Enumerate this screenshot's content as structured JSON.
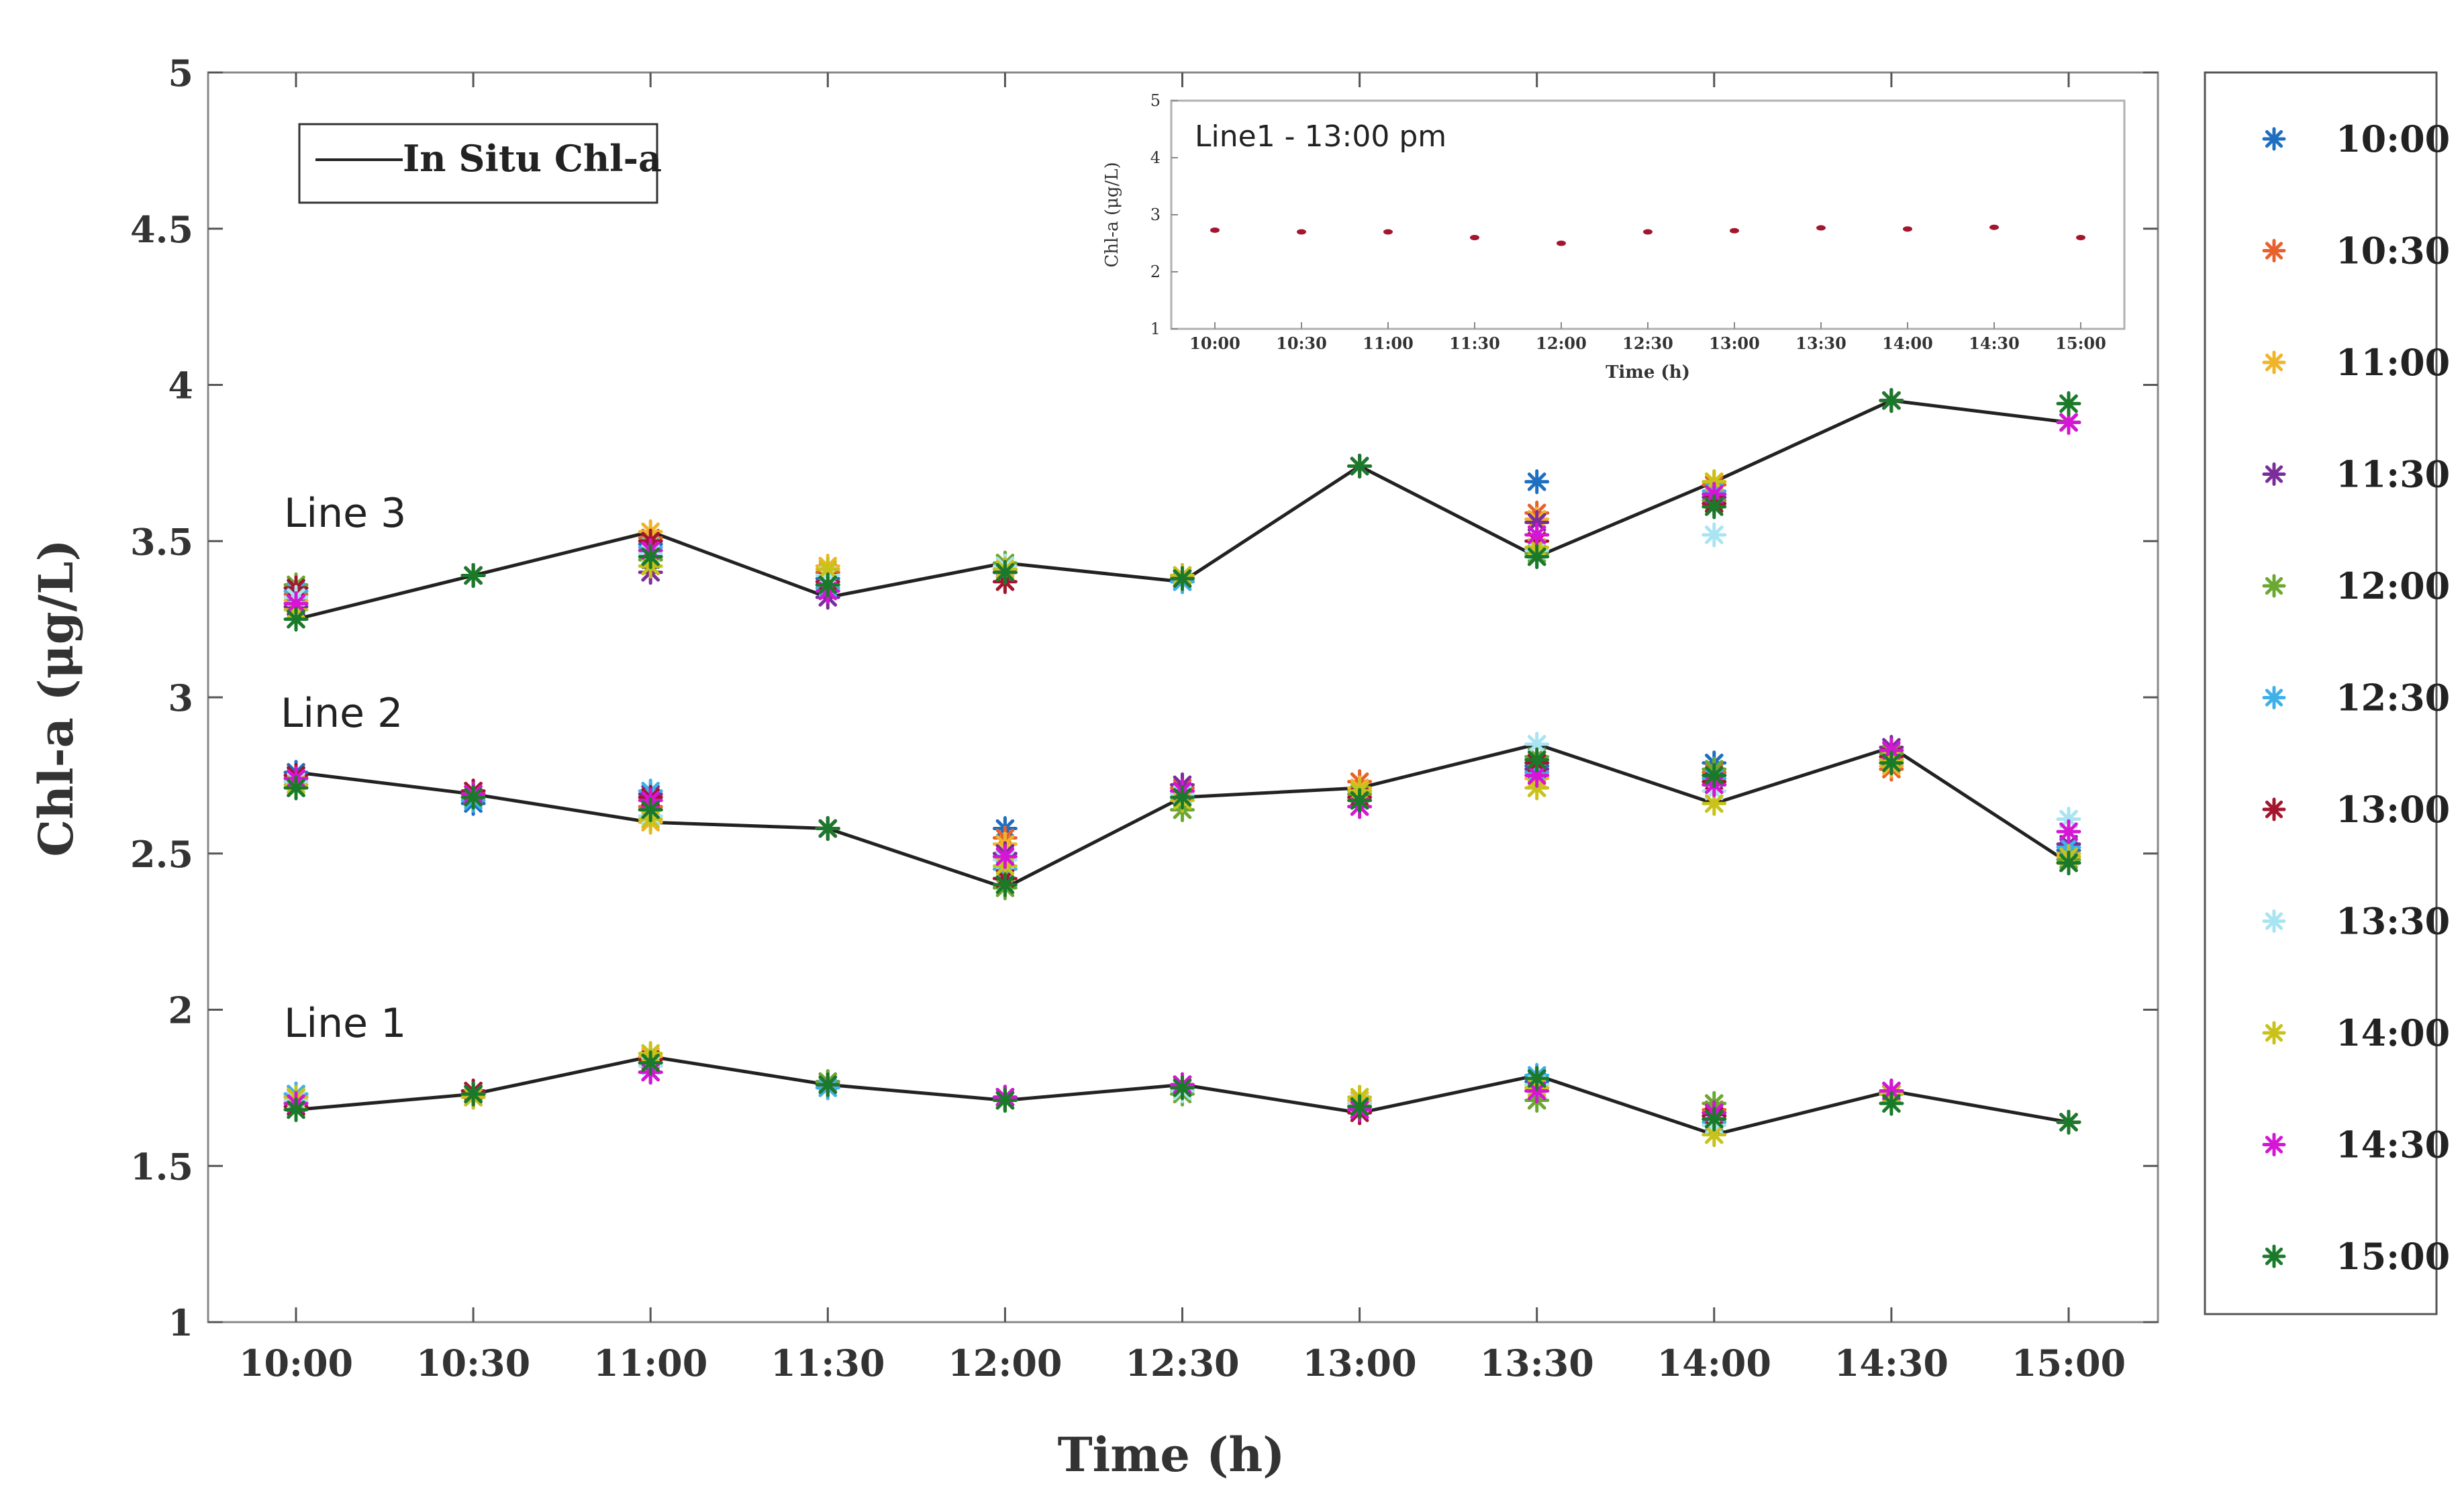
{
  "chart_data": {
    "type": "scatter",
    "ylabel": "Chl-a (μg/L)",
    "xlabel": "Time (h)",
    "x_categories": [
      "10:00",
      "10:30",
      "11:00",
      "11:30",
      "12:00",
      "12:30",
      "13:00",
      "13:30",
      "14:00",
      "14:30",
      "15:00"
    ],
    "ylim": [
      1,
      5
    ],
    "y_ticks": [
      1,
      1.5,
      2,
      2.5,
      3,
      3.5,
      4,
      4.5,
      5
    ],
    "y_tick_labels": [
      "1",
      "1.5",
      "2",
      "2.5",
      "3",
      "3.5",
      "4",
      "4.5",
      "5"
    ],
    "in_situ_legend_label": "In Situ Chl-a",
    "line_labels": [
      "Line 1",
      "Line 2",
      "Line 3"
    ],
    "in_situ": {
      "Line 1": [
        1.68,
        1.73,
        1.85,
        1.76,
        1.71,
        1.76,
        1.67,
        1.79,
        1.6,
        1.74,
        1.64
      ],
      "Line 2": [
        2.76,
        2.69,
        2.6,
        2.58,
        2.39,
        2.68,
        2.71,
        2.85,
        2.66,
        2.84,
        2.47
      ],
      "Line 3": [
        3.25,
        3.39,
        3.53,
        3.32,
        3.43,
        3.37,
        3.74,
        3.45,
        3.69,
        3.95,
        3.88
      ]
    },
    "series_names": [
      "10:00",
      "10:30",
      "11:00",
      "11:30",
      "12:00",
      "12:30",
      "13:00",
      "13:30",
      "14:00",
      "14:30",
      "15:00"
    ],
    "series_colors": [
      "#1f6fc0",
      "#e8612c",
      "#f0b429",
      "#7b2d9a",
      "#6aa832",
      "#3fb1e8",
      "#a3162e",
      "#a8e4f2",
      "#c9c21a",
      "#d516d5",
      "#1a7a2a"
    ],
    "legend_position": "right",
    "predicted": {
      "Line 1": [
        [
          1.7,
          1.72,
          1.71,
          1.73,
          1.72,
          1.73,
          1.69,
          1.71,
          1.72,
          1.7,
          1.68
        ],
        [
          1.73,
          1.73,
          1.72,
          1.73,
          1.73,
          1.72,
          1.74,
          1.73,
          1.72,
          1.73,
          1.73
        ],
        [
          1.84,
          1.83,
          1.85,
          1.8,
          1.82,
          1.83,
          1.84,
          1.82,
          1.86,
          1.8,
          1.83
        ],
        [
          1.76,
          1.77,
          1.76,
          1.76,
          1.77,
          1.75,
          1.76,
          1.76,
          1.76,
          1.76,
          1.76
        ],
        [
          1.71,
          1.72,
          1.71,
          1.72,
          1.71,
          1.72,
          1.72,
          1.71,
          1.71,
          1.72,
          1.71
        ],
        [
          1.75,
          1.76,
          1.74,
          1.76,
          1.73,
          1.75,
          1.76,
          1.74,
          1.75,
          1.76,
          1.75
        ],
        [
          1.69,
          1.68,
          1.71,
          1.7,
          1.69,
          1.68,
          1.67,
          1.7,
          1.72,
          1.68,
          1.69
        ],
        [
          1.77,
          1.76,
          1.75,
          1.74,
          1.71,
          1.79,
          1.78,
          1.76,
          1.75,
          1.74,
          1.78
        ],
        [
          1.66,
          1.68,
          1.65,
          1.67,
          1.7,
          1.64,
          1.66,
          1.63,
          1.6,
          1.67,
          1.65
        ],
        [
          1.73,
          1.74,
          1.73,
          1.74,
          1.73,
          1.74,
          1.73,
          1.74,
          1.73,
          1.74,
          1.7
        ],
        [
          1.64,
          1.64,
          1.64,
          1.64,
          1.64,
          1.64,
          1.64,
          1.64,
          1.64,
          1.64,
          1.64
        ]
      ],
      "Line 2": [
        [
          2.76,
          2.74,
          2.73,
          2.75,
          2.71,
          2.74,
          2.75,
          2.73,
          2.72,
          2.74,
          2.71
        ],
        [
          2.66,
          2.7,
          2.69,
          2.68,
          2.69,
          2.67,
          2.7,
          2.69,
          2.68,
          2.69,
          2.68
        ],
        [
          2.68,
          2.65,
          2.6,
          2.69,
          2.64,
          2.7,
          2.68,
          2.62,
          2.61,
          2.67,
          2.64
        ],
        [
          2.58,
          2.58,
          2.58,
          2.58,
          2.58,
          2.58,
          2.58,
          2.58,
          2.58,
          2.58,
          2.58
        ],
        [
          2.58,
          2.55,
          2.53,
          2.5,
          2.39,
          2.45,
          2.42,
          2.48,
          2.46,
          2.49,
          2.4
        ],
        [
          2.69,
          2.71,
          2.7,
          2.72,
          2.64,
          2.68,
          2.7,
          2.69,
          2.67,
          2.7,
          2.68
        ],
        [
          2.69,
          2.73,
          2.71,
          2.7,
          2.69,
          2.67,
          2.68,
          2.7,
          2.7,
          2.65,
          2.67
        ],
        [
          2.78,
          2.76,
          2.74,
          2.77,
          2.81,
          2.76,
          2.79,
          2.85,
          2.71,
          2.75,
          2.8
        ],
        [
          2.79,
          2.76,
          2.72,
          2.75,
          2.77,
          2.74,
          2.73,
          2.7,
          2.66,
          2.72,
          2.75
        ],
        [
          2.8,
          2.77,
          2.78,
          2.84,
          2.82,
          2.8,
          2.81,
          2.79,
          2.8,
          2.83,
          2.79
        ],
        [
          2.51,
          2.49,
          2.5,
          2.53,
          2.48,
          2.52,
          2.47,
          2.61,
          2.49,
          2.57,
          2.47
        ]
      ],
      "Line 3": [
        [
          3.3,
          3.33,
          3.31,
          3.29,
          3.36,
          3.34,
          3.35,
          3.32,
          3.28,
          3.3,
          3.25
        ],
        [
          3.39,
          3.39,
          3.39,
          3.39,
          3.39,
          3.39,
          3.39,
          3.39,
          3.39,
          3.39,
          3.39
        ],
        [
          3.49,
          3.51,
          3.53,
          3.4,
          3.44,
          3.48,
          3.5,
          3.46,
          3.42,
          3.47,
          3.45
        ],
        [
          3.38,
          3.4,
          3.42,
          3.32,
          3.36,
          3.35,
          3.37,
          3.39,
          3.41,
          3.34,
          3.36
        ],
        [
          3.4,
          3.41,
          3.42,
          3.4,
          3.43,
          3.41,
          3.37,
          3.42,
          3.41,
          3.4,
          3.4
        ],
        [
          3.37,
          3.39,
          3.38,
          3.38,
          3.39,
          3.37,
          3.38,
          3.38,
          3.39,
          3.38,
          3.38
        ],
        [
          3.74,
          3.74,
          3.74,
          3.74,
          3.74,
          3.74,
          3.74,
          3.74,
          3.74,
          3.74,
          3.74
        ],
        [
          3.69,
          3.59,
          3.57,
          3.56,
          3.46,
          3.45,
          3.5,
          3.47,
          3.48,
          3.52,
          3.45
        ],
        [
          3.65,
          3.68,
          3.69,
          3.64,
          3.63,
          3.66,
          3.62,
          3.52,
          3.69,
          3.65,
          3.61
        ],
        [
          3.95,
          3.95,
          3.95,
          3.95,
          3.95,
          3.95,
          3.95,
          3.95,
          3.95,
          3.95,
          3.95
        ],
        [
          3.88,
          3.88,
          3.88,
          3.88,
          3.88,
          3.88,
          3.88,
          3.88,
          3.88,
          3.88,
          3.94
        ]
      ]
    },
    "inset": {
      "title": "Line1 - 13:00 pm",
      "type": "scatter",
      "ylabel": "Chl-a (μg/L)",
      "xlabel": "Time (h)",
      "ylim": [
        1,
        5
      ],
      "y_ticks": [
        1,
        2,
        3,
        4,
        5
      ],
      "y_tick_labels": [
        "1",
        "2",
        "3",
        "4",
        "5"
      ],
      "x_categories": [
        "10:00",
        "10:30",
        "11:00",
        "11:30",
        "12:00",
        "12:30",
        "13:00",
        "13:30",
        "14:00",
        "14:30",
        "15:00"
      ],
      "values": [
        2.73,
        2.7,
        2.7,
        2.6,
        2.5,
        2.7,
        2.72,
        2.77,
        2.75,
        2.78,
        2.6
      ],
      "color": "#a3162e"
    }
  }
}
